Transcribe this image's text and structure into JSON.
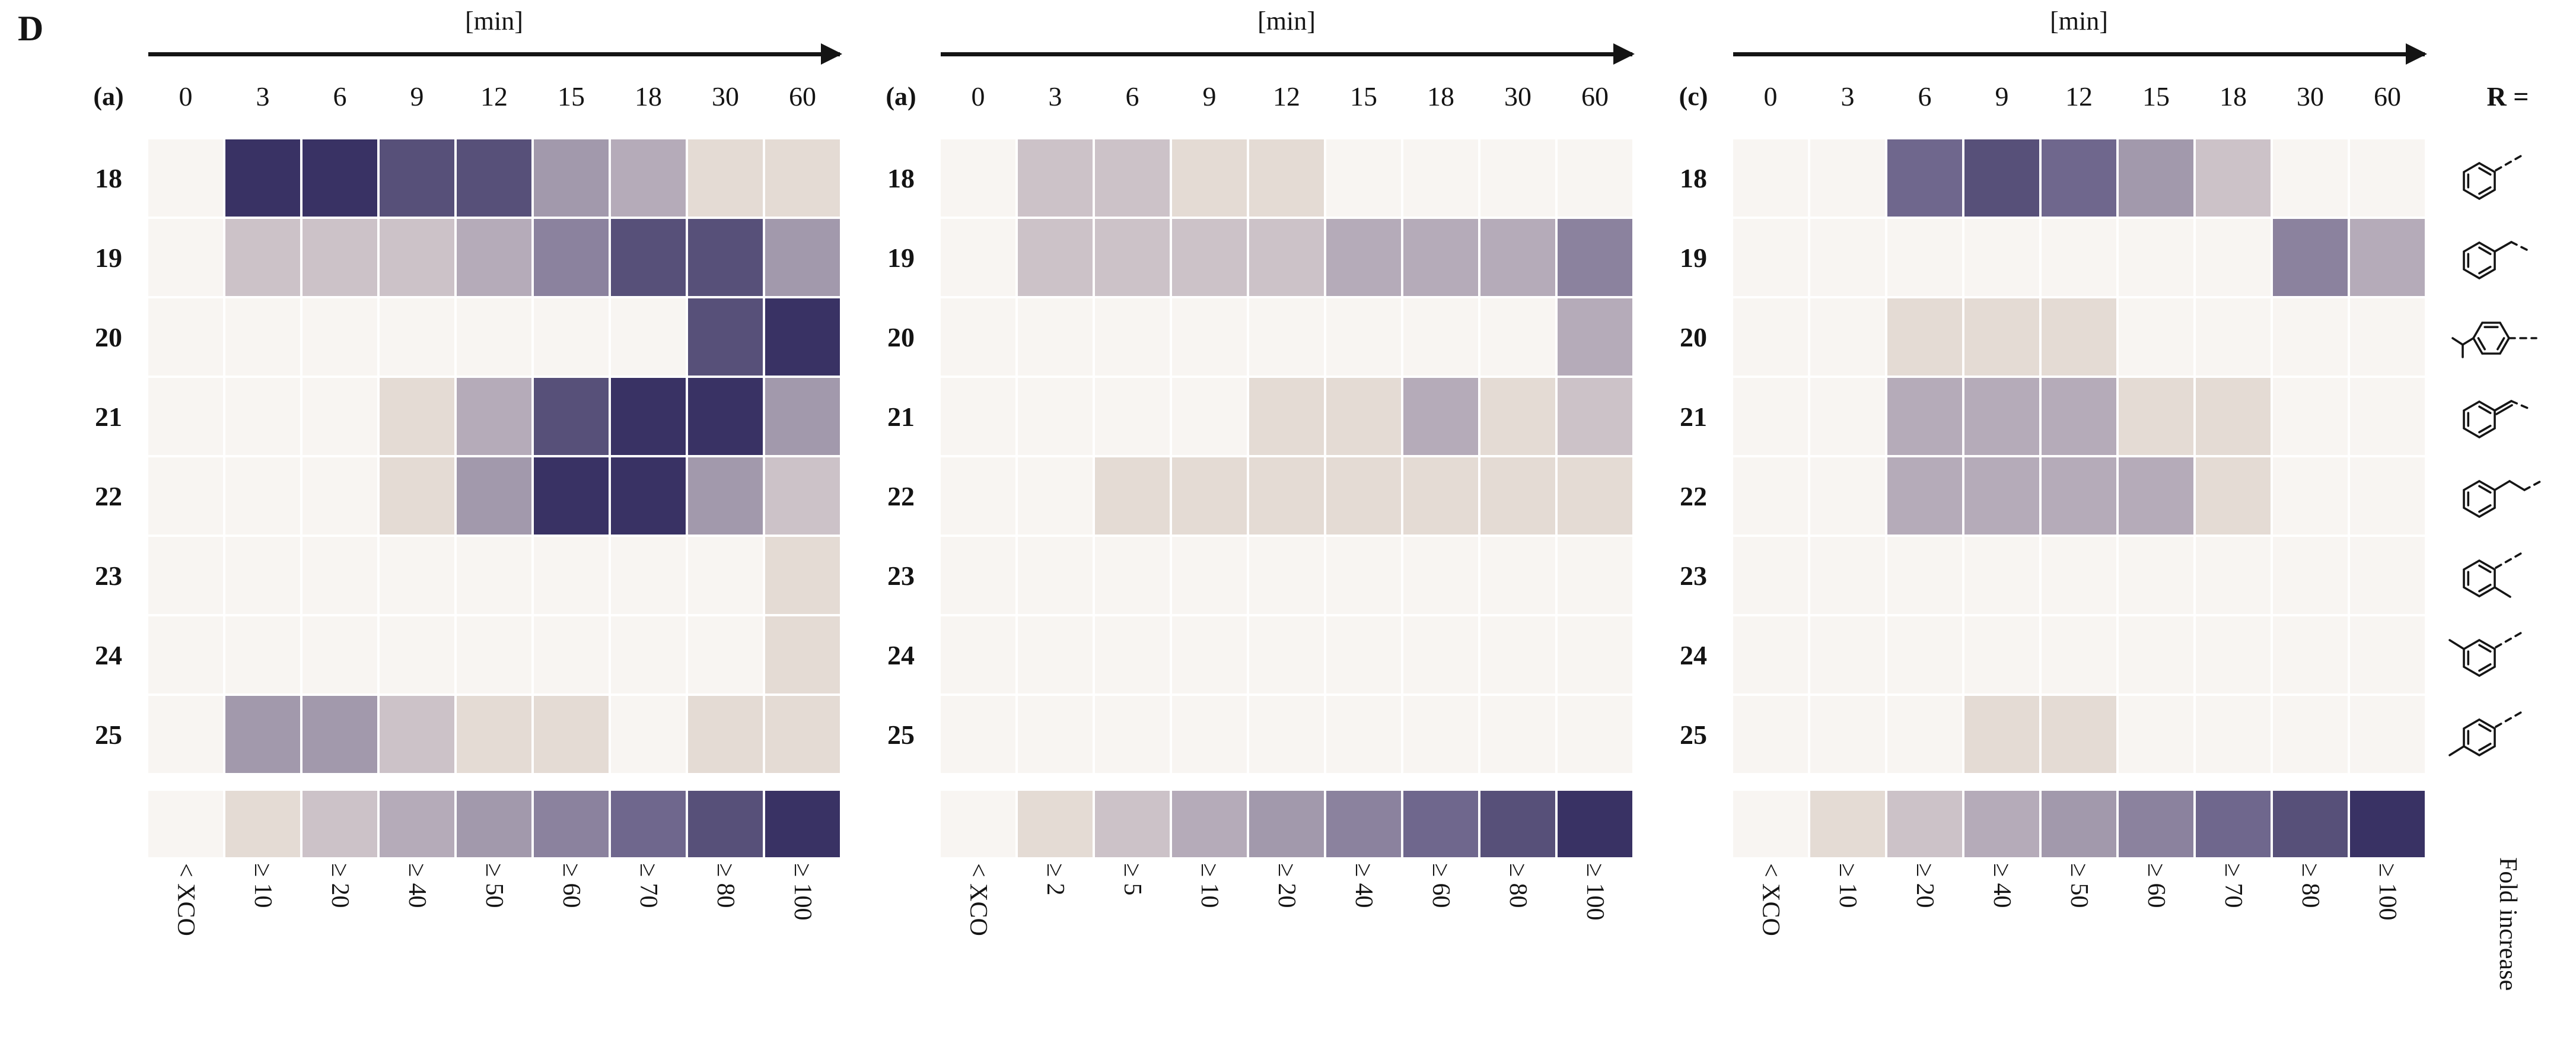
{
  "chart_data": {
    "type": "heatmap",
    "figure_label": "D",
    "x_unit": "[min]",
    "x": [
      "0",
      "3",
      "6",
      "9",
      "12",
      "15",
      "18",
      "30",
      "60"
    ],
    "rows": [
      "18",
      "19",
      "20",
      "21",
      "22",
      "23",
      "24",
      "25"
    ],
    "r_label": "R =",
    "legend_label": "Fold increase",
    "colors": [
      "#f8f5f2",
      "#e4dbd4",
      "#ccc2c8",
      "#b5abb9",
      "#a299ac",
      "#8b829e",
      "#6f678d",
      "#575079",
      "#393264"
    ],
    "color_meaning": "ordinal fold-increase bin index into each panel's bins array; 0 = below XCO baseline, 8 = highest bin",
    "colorbar_levels": [
      0,
      1,
      2,
      3,
      4,
      5,
      6,
      7,
      8
    ],
    "panels": [
      {
        "label": "(a)",
        "bins": [
          "< XCO",
          "≥ 10",
          "≥ 20",
          "≥ 40",
          "≥ 50",
          "≥ 60",
          "≥ 70",
          "≥ 80",
          "≥ 100"
        ],
        "values": [
          [
            0,
            8,
            8,
            7,
            7,
            4,
            3,
            1,
            1
          ],
          [
            0,
            2,
            2,
            2,
            3,
            5,
            7,
            7,
            4
          ],
          [
            0,
            0,
            0,
            0,
            0,
            0,
            0,
            7,
            8
          ],
          [
            0,
            0,
            0,
            1,
            3,
            7,
            8,
            8,
            4
          ],
          [
            0,
            0,
            0,
            1,
            4,
            8,
            8,
            4,
            2
          ],
          [
            0,
            0,
            0,
            0,
            0,
            0,
            0,
            0,
            1
          ],
          [
            0,
            0,
            0,
            0,
            0,
            0,
            0,
            0,
            1
          ],
          [
            0,
            4,
            4,
            2,
            1,
            1,
            0,
            1,
            1
          ]
        ]
      },
      {
        "label": "(a)",
        "bins": [
          "< XCO",
          "≥ 2",
          "≥ 5",
          "≥ 10",
          "≥ 20",
          "≥ 40",
          "≥ 60",
          "≥ 80",
          "≥ 100"
        ],
        "values": [
          [
            0,
            2,
            2,
            1,
            1,
            0,
            0,
            0,
            0
          ],
          [
            0,
            2,
            2,
            2,
            2,
            3,
            3,
            3,
            5
          ],
          [
            0,
            0,
            0,
            0,
            0,
            0,
            0,
            0,
            3
          ],
          [
            0,
            0,
            0,
            0,
            1,
            1,
            3,
            1,
            2
          ],
          [
            0,
            0,
            1,
            1,
            1,
            1,
            1,
            1,
            1
          ],
          [
            0,
            0,
            0,
            0,
            0,
            0,
            0,
            0,
            0
          ],
          [
            0,
            0,
            0,
            0,
            0,
            0,
            0,
            0,
            0
          ],
          [
            0,
            0,
            0,
            0,
            0,
            0,
            0,
            0,
            0
          ]
        ]
      },
      {
        "label": "(c)",
        "bins": [
          "< XCO",
          "≥ 10",
          "≥ 20",
          "≥ 40",
          "≥ 50",
          "≥ 60",
          "≥ 70",
          "≥ 80",
          "≥ 100"
        ],
        "values": [
          [
            0,
            0,
            6,
            7,
            6,
            4,
            2,
            0,
            0
          ],
          [
            0,
            0,
            0,
            0,
            0,
            0,
            0,
            5,
            3
          ],
          [
            0,
            0,
            1,
            1,
            1,
            0,
            0,
            0,
            0
          ],
          [
            0,
            0,
            3,
            3,
            3,
            1,
            1,
            0,
            0
          ],
          [
            0,
            0,
            3,
            3,
            3,
            3,
            1,
            0,
            0
          ],
          [
            0,
            0,
            0,
            0,
            0,
            0,
            0,
            0,
            0
          ],
          [
            0,
            0,
            0,
            0,
            0,
            0,
            0,
            0,
            0
          ],
          [
            0,
            0,
            0,
            1,
            1,
            0,
            0,
            0,
            0
          ]
        ]
      }
    ],
    "r_groups": [
      {
        "row": "18",
        "name": "phenyl",
        "type": "phenyl"
      },
      {
        "row": "19",
        "name": "benzyl",
        "type": "benzyl"
      },
      {
        "row": "20",
        "name": "4-isopropylphenyl",
        "type": "isopropylphenyl"
      },
      {
        "row": "21",
        "name": "styryl (2-phenylvinyl)",
        "type": "styryl"
      },
      {
        "row": "22",
        "name": "phenethyl",
        "type": "phenethyl"
      },
      {
        "row": "23",
        "name": "2-methylphenyl",
        "type": "otolyl"
      },
      {
        "row": "24",
        "name": "3-methylphenyl",
        "type": "mtolyl"
      },
      {
        "row": "25",
        "name": "4-methylphenyl",
        "type": "ptolyl"
      }
    ]
  }
}
